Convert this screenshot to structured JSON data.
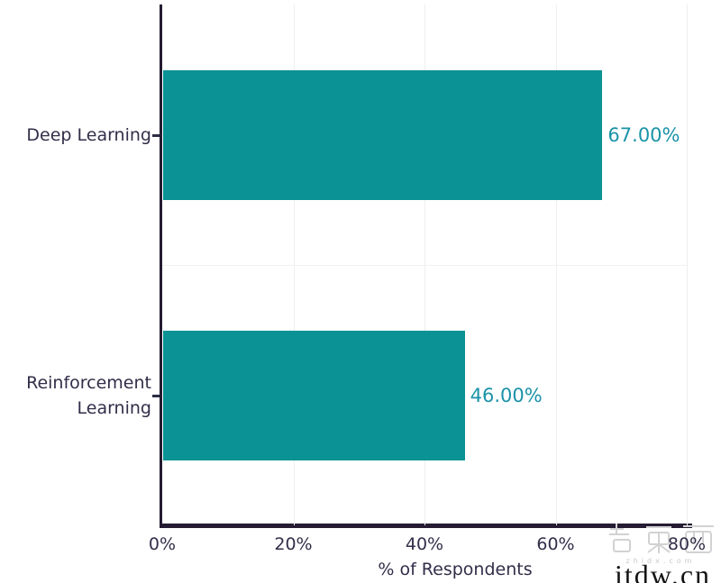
{
  "chart_data": {
    "type": "bar",
    "orientation": "horizontal",
    "categories": [
      "Deep Learning",
      "Reinforcement Learning"
    ],
    "values": [
      67,
      46
    ],
    "value_labels": [
      "67.00%",
      "46.00%"
    ],
    "xlabel": "% of Respondents",
    "x_tick_labels": [
      "0%",
      "20%",
      "40%",
      "60%",
      "80%"
    ],
    "x_tick_values": [
      0,
      20,
      40,
      60,
      80
    ],
    "xlim": [
      0,
      80
    ],
    "grid": true,
    "legend": false,
    "colors": {
      "bar": "#0a9294",
      "value_label": "#1b93a8",
      "text": "#322e49",
      "axis_line": "#251b32",
      "gridline": "#eeeeee"
    }
  },
  "watermark": {
    "logo_icon": "zhidx-logo",
    "logo_characters": "智东西",
    "small_text": "zhidx.com",
    "site_text": "itdw.cn"
  }
}
